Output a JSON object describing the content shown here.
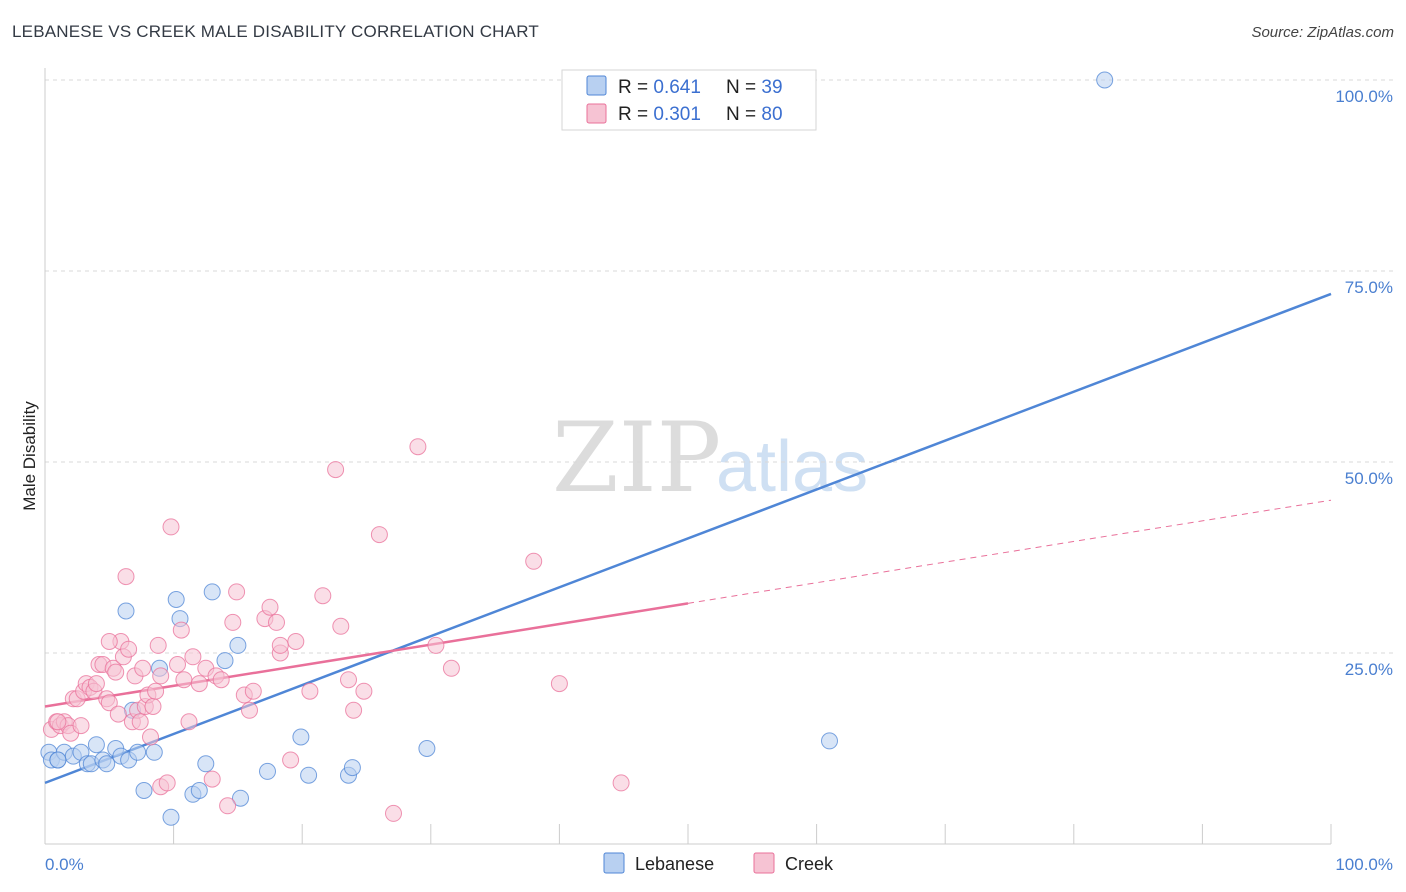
{
  "header": {
    "title": "LEBANESE VS CREEK MALE DISABILITY CORRELATION CHART",
    "source": "Source: ZipAtlas.com"
  },
  "watermark": {
    "part1": "ZIP",
    "part2": "atlas"
  },
  "colors": {
    "blue": "#4f86d6",
    "blue_fill": "#b8d0f1",
    "pink": "#e9709a",
    "pink_fill": "#f6c3d3",
    "tick_text": "#4a7fd0",
    "grid": "#d9d9d9"
  },
  "legend": {
    "rows": [
      {
        "r_label": "R = ",
        "r_value": "0.641",
        "n_label": "N = ",
        "n_value": "39"
      },
      {
        "r_label": "R = ",
        "r_value": "0.301",
        "n_label": "N = ",
        "n_value": "80"
      }
    ]
  },
  "chart_data": {
    "type": "scatter",
    "title": "LEBANESE VS CREEK MALE DISABILITY CORRELATION CHART",
    "xlabel": "",
    "ylabel": "Male Disability",
    "xlim": [
      0,
      100
    ],
    "ylim": [
      0,
      100
    ],
    "x_ticks": [
      "0.0%",
      "100.0%"
    ],
    "y_ticks": [
      {
        "value": 25,
        "label": "25.0%"
      },
      {
        "value": 50,
        "label": "50.0%"
      },
      {
        "value": 75,
        "label": "75.0%"
      },
      {
        "value": 100,
        "label": "100.0%"
      }
    ],
    "grid": "horizontal dashed",
    "legend_position": "top-center and bottom",
    "series": [
      {
        "name": "Lebanese",
        "color": "#4f86d6",
        "r": 0.641,
        "n": 39,
        "trend": {
          "x": [
            0,
            100
          ],
          "y": [
            8.0,
            72.0
          ],
          "dashed_from": null
        },
        "points": [
          [
            0.3,
            12.0
          ],
          [
            0.5,
            11.0
          ],
          [
            1.0,
            11.0
          ],
          [
            1.5,
            12.0
          ],
          [
            2.2,
            11.5
          ],
          [
            2.8,
            12.0
          ],
          [
            3.3,
            10.5
          ],
          [
            3.6,
            10.5
          ],
          [
            4.0,
            13.0
          ],
          [
            4.5,
            11.0
          ],
          [
            4.8,
            10.5
          ],
          [
            5.5,
            12.5
          ],
          [
            5.9,
            11.5
          ],
          [
            6.5,
            11.0
          ],
          [
            6.8,
            17.5
          ],
          [
            6.3,
            30.5
          ],
          [
            7.2,
            12.0
          ],
          [
            7.7,
            7.0
          ],
          [
            8.5,
            12.0
          ],
          [
            8.9,
            23.0
          ],
          [
            9.8,
            3.5
          ],
          [
            10.2,
            32.0
          ],
          [
            10.5,
            29.5
          ],
          [
            11.5,
            6.5
          ],
          [
            12.0,
            7.0
          ],
          [
            12.5,
            10.5
          ],
          [
            13.0,
            33.0
          ],
          [
            14.0,
            24.0
          ],
          [
            15.0,
            26.0
          ],
          [
            15.2,
            6.0
          ],
          [
            17.3,
            9.5
          ],
          [
            19.9,
            14.0
          ],
          [
            20.5,
            9.0
          ],
          [
            23.6,
            9.0
          ],
          [
            23.9,
            10.0
          ],
          [
            29.7,
            12.5
          ],
          [
            61.0,
            13.5
          ],
          [
            82.4,
            100.0
          ],
          [
            1.0,
            11.0
          ]
        ]
      },
      {
        "name": "Creek",
        "color": "#e9709a",
        "r": 0.301,
        "n": 80,
        "trend": {
          "x": [
            0,
            100
          ],
          "y": [
            18.0,
            45.0
          ],
          "dashed_from": 50
        },
        "points": [
          [
            0.5,
            15.0
          ],
          [
            0.9,
            16.0
          ],
          [
            1.2,
            15.5
          ],
          [
            1.5,
            16.0
          ],
          [
            1.8,
            15.5
          ],
          [
            2.0,
            14.5
          ],
          [
            2.2,
            19.0
          ],
          [
            2.5,
            19.0
          ],
          [
            2.8,
            15.5
          ],
          [
            3.0,
            20.0
          ],
          [
            3.2,
            21.0
          ],
          [
            3.5,
            20.5
          ],
          [
            3.8,
            20.0
          ],
          [
            4.0,
            21.0
          ],
          [
            4.2,
            23.5
          ],
          [
            4.5,
            23.5
          ],
          [
            4.8,
            19.0
          ],
          [
            5.0,
            18.5
          ],
          [
            5.3,
            23.0
          ],
          [
            5.5,
            22.5
          ],
          [
            5.7,
            17.0
          ],
          [
            5.9,
            26.5
          ],
          [
            6.1,
            24.5
          ],
          [
            6.3,
            35.0
          ],
          [
            6.5,
            25.5
          ],
          [
            6.8,
            16.0
          ],
          [
            7.0,
            22.0
          ],
          [
            7.2,
            17.5
          ],
          [
            7.4,
            16.0
          ],
          [
            7.6,
            23.0
          ],
          [
            7.8,
            18.0
          ],
          [
            8.0,
            19.5
          ],
          [
            8.2,
            14.0
          ],
          [
            8.4,
            18.0
          ],
          [
            8.6,
            20.0
          ],
          [
            8.8,
            26.0
          ],
          [
            9.0,
            7.5
          ],
          [
            9.5,
            8.0
          ],
          [
            9.8,
            41.5
          ],
          [
            10.3,
            23.5
          ],
          [
            10.6,
            28.0
          ],
          [
            10.8,
            21.5
          ],
          [
            11.2,
            16.0
          ],
          [
            11.5,
            24.5
          ],
          [
            12.0,
            21.0
          ],
          [
            12.5,
            23.0
          ],
          [
            13.0,
            8.5
          ],
          [
            13.3,
            22.0
          ],
          [
            13.7,
            21.5
          ],
          [
            14.2,
            5.0
          ],
          [
            14.6,
            29.0
          ],
          [
            14.9,
            33.0
          ],
          [
            15.5,
            19.5
          ],
          [
            15.9,
            17.5
          ],
          [
            16.2,
            20.0
          ],
          [
            17.1,
            29.5
          ],
          [
            17.5,
            31.0
          ],
          [
            18.0,
            29.0
          ],
          [
            18.3,
            25.0
          ],
          [
            19.5,
            26.5
          ],
          [
            19.1,
            11.0
          ],
          [
            20.6,
            20.0
          ],
          [
            21.6,
            32.5
          ],
          [
            22.6,
            49.0
          ],
          [
            23.0,
            28.5
          ],
          [
            23.6,
            21.5
          ],
          [
            24.0,
            17.5
          ],
          [
            24.8,
            20.0
          ],
          [
            26.0,
            40.5
          ],
          [
            27.1,
            4.0
          ],
          [
            29.0,
            52.0
          ],
          [
            30.4,
            26.0
          ],
          [
            31.6,
            23.0
          ],
          [
            38.0,
            37.0
          ],
          [
            40.0,
            21.0
          ],
          [
            44.8,
            8.0
          ],
          [
            18.3,
            26.0
          ],
          [
            9.0,
            22.0
          ],
          [
            5.0,
            26.5
          ],
          [
            1.0,
            16.0
          ]
        ]
      }
    ]
  },
  "bottom_legend": {
    "items": [
      {
        "label": "Lebanese",
        "color": "#4f86d6",
        "fill": "#b8d0f1"
      },
      {
        "label": "Creek",
        "color": "#e9709a",
        "fill": "#f6c3d3"
      }
    ]
  }
}
